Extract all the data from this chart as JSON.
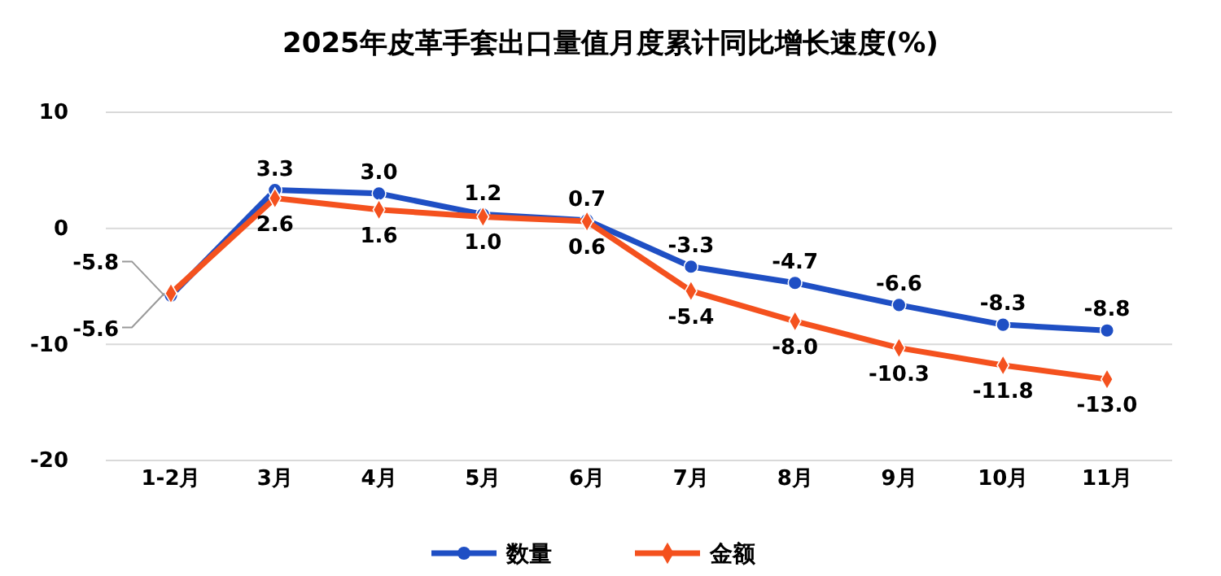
{
  "chart_data": {
    "type": "line",
    "title": "2025年皮革手套出口量值月度累计同比增长速度(%)",
    "categories": [
      "1-2月",
      "3月",
      "4月",
      "5月",
      "6月",
      "7月",
      "8月",
      "9月",
      "10月",
      "11月"
    ],
    "series": [
      {
        "name": "数量",
        "color": "#1f4fc4",
        "marker": "circle",
        "values": [
          -5.8,
          3.3,
          3.0,
          1.2,
          0.7,
          -3.3,
          -4.7,
          -6.6,
          -8.3,
          -8.8
        ],
        "value_labels": [
          "-5.8",
          "3.3",
          "3.0",
          "1.2",
          "0.7",
          "-3.3",
          "-4.7",
          "-6.6",
          "-8.3",
          "-8.8"
        ]
      },
      {
        "name": "金额",
        "color": "#f4511e",
        "marker": "diamond",
        "values": [
          -5.6,
          2.6,
          1.6,
          1.0,
          0.6,
          -5.4,
          -8.0,
          -10.3,
          -11.8,
          -13.0
        ],
        "value_labels": [
          "-5.6",
          "2.6",
          "1.6",
          "1.0",
          "0.6",
          "-5.4",
          "-8.0",
          "-10.3",
          "-11.8",
          "-13.0"
        ]
      }
    ],
    "ylim": [
      -20,
      10
    ],
    "yticks": [
      -20,
      -10,
      0,
      10
    ],
    "grid": "y",
    "legend": "bottom",
    "line_style": "solid"
  }
}
